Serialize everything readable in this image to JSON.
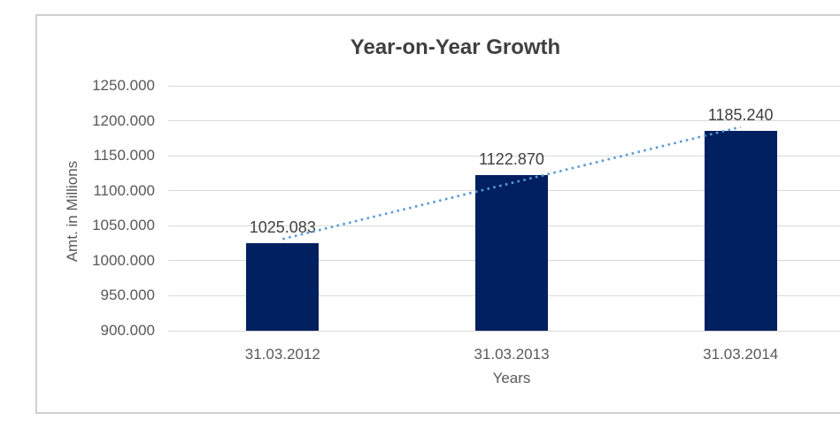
{
  "chart_data": {
    "type": "bar",
    "title": "Year-on-Year Growth",
    "xlabel": "Years",
    "ylabel": "Amt. in Millions",
    "categories": [
      "31.03.2012",
      "31.03.2013",
      "31.03.2014"
    ],
    "values": [
      1025.083,
      1122.87,
      1185.24
    ],
    "data_labels": [
      "1025.083",
      "1122.870",
      "1185.240"
    ],
    "ylim": [
      900,
      1250
    ],
    "y_tick_step": 50,
    "y_ticks": [
      {
        "value": 900,
        "label": "900.000"
      },
      {
        "value": 950,
        "label": "950.000"
      },
      {
        "value": 1000,
        "label": "1000.000"
      },
      {
        "value": 1050,
        "label": "1050.000"
      },
      {
        "value": 1100,
        "label": "1100.000"
      },
      {
        "value": 1150,
        "label": "1150.000"
      },
      {
        "value": 1200,
        "label": "1200.000"
      },
      {
        "value": 1250,
        "label": "1250.000"
      }
    ],
    "grid": true,
    "legend": "none",
    "trendline": {
      "type": "linear",
      "style": "dotted"
    }
  },
  "colors": {
    "bar": "#002060",
    "trendline": "#5B9BD5",
    "gridline": "#D9D9D9",
    "title_text": "#404040",
    "axis_text": "#595959",
    "label_text": "#404040",
    "border": "#D0D0D0",
    "background": "#FFFFFF"
  }
}
